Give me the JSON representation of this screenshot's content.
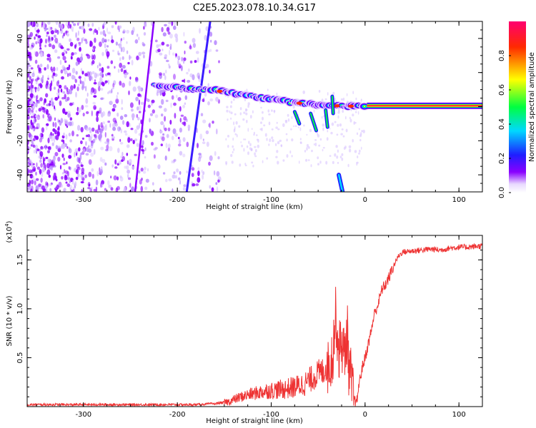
{
  "figure": {
    "title": "C2E5.2023.078.10.34.G17"
  },
  "chart_data": [
    {
      "type": "heatmap",
      "xlabel": "Height of straight line (km)",
      "ylabel": "Frequency (Hz)",
      "xlim": [
        -360,
        125
      ],
      "ylim": [
        -50,
        50
      ],
      "xticks": [
        -300,
        -200,
        -100,
        0,
        100
      ],
      "xtick_labels": [
        "-300",
        "-200",
        "-100",
        "0",
        "100"
      ],
      "yticks": [
        -40,
        -20,
        0,
        20,
        40
      ],
      "ytick_labels": [
        "-40",
        "-20",
        "0",
        "20",
        "40"
      ],
      "colorbar": {
        "label": "Normalized spectral amplitude",
        "range": [
          0,
          1
        ],
        "ticks": [
          0.0,
          0.2,
          0.4,
          0.6,
          0.8
        ],
        "tick_labels": [
          "0.0",
          "0.2",
          "0.4",
          "0.6",
          "0.8"
        ],
        "colors": [
          "#ffffff",
          "#8a00ff",
          "#1e1eff",
          "#00d8ff",
          "#00ff40",
          "#ffff00",
          "#ff2a00",
          "#ff0070"
        ]
      },
      "features": {
        "carrier_line": {
          "x_range": [
            2,
            125
          ],
          "frequency": 0.5
        },
        "signal_track": [
          [
            -225,
            13
          ],
          [
            -210,
            12
          ],
          [
            -195,
            11
          ],
          [
            -180,
            10
          ],
          [
            -160,
            10
          ],
          [
            -150,
            9
          ],
          [
            -130,
            7
          ],
          [
            -110,
            5
          ],
          [
            -90,
            4
          ],
          [
            -70,
            2
          ],
          [
            -50,
            1
          ],
          [
            -30,
            0.5
          ],
          [
            -10,
            0.3
          ],
          [
            0,
            0.3
          ]
        ],
        "steep_line_1": [
          [
            -245,
            -50
          ],
          [
            -225,
            50
          ]
        ],
        "steep_line_2": [
          [
            -190,
            -50
          ],
          [
            -165,
            50
          ]
        ],
        "lower_fragment": [
          [
            -28,
            -40
          ],
          [
            -24,
            -50
          ]
        ]
      }
    },
    {
      "type": "line",
      "xlabel": "Height of straight line (km)",
      "ylabel": "SNR (10 * v/v)",
      "yscale_label": "(x10",
      "yscale_exp": "4",
      "yscale_close": ")",
      "xlim": [
        -360,
        125
      ],
      "ylim": [
        0,
        1.75
      ],
      "xticks": [
        -300,
        -200,
        -100,
        0,
        100
      ],
      "xtick_labels": [
        "-300",
        "-200",
        "-100",
        "0",
        "100"
      ],
      "yticks": [
        0.5,
        1.0,
        1.5
      ],
      "ytick_labels": [
        "0.5",
        "1.0",
        "1.5"
      ],
      "color": "#ee3333",
      "series": [
        {
          "x": [
            -360,
            -330,
            -300,
            -270,
            -240,
            -210,
            -180,
            -160,
            -145,
            -135,
            -125,
            -115,
            -105,
            -95,
            -85,
            -75,
            -65,
            -55,
            -50,
            -45,
            -40,
            -35,
            -31,
            -28,
            -25,
            -22,
            -19,
            -17,
            -15,
            -13,
            -11,
            -9,
            -7,
            -5,
            -3,
            0,
            3,
            6,
            10,
            14,
            18,
            22,
            26,
            30,
            35,
            40,
            50,
            60,
            70,
            80,
            90,
            100,
            110,
            120,
            125
          ],
          "y": [
            0.02,
            0.02,
            0.02,
            0.02,
            0.02,
            0.02,
            0.02,
            0.03,
            0.05,
            0.09,
            0.12,
            0.14,
            0.16,
            0.17,
            0.18,
            0.2,
            0.23,
            0.3,
            0.34,
            0.36,
            0.42,
            0.5,
            0.95,
            0.55,
            0.68,
            0.5,
            0.78,
            0.35,
            0.3,
            0.1,
            0.06,
            0.02,
            0.2,
            0.3,
            0.4,
            0.5,
            0.62,
            0.75,
            0.95,
            1.05,
            1.2,
            1.25,
            1.33,
            1.43,
            1.53,
            1.58,
            1.59,
            1.6,
            1.61,
            1.6,
            1.62,
            1.63,
            1.63,
            1.64,
            1.64
          ]
        }
      ]
    }
  ]
}
